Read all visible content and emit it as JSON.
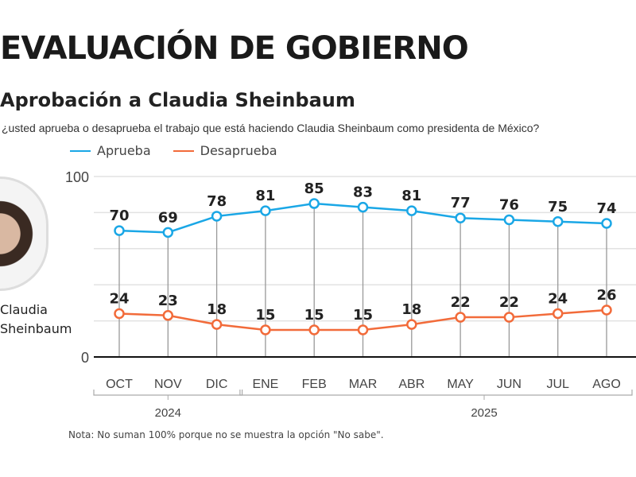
{
  "header": {
    "title": "EVALUACIÓN DE GOBIERNO",
    "subtitle": "Aprobación a Claudia Sheinbaum",
    "question": "¿usted aprueba o desaprueba el trabajo que está haciendo Claudia Sheinbaum como presidenta de México?"
  },
  "portrait": {
    "name_line1": "Claudia",
    "name_line2": "Sheinbaum"
  },
  "note": "Nota: No suman 100% porque no se muestra la opción \"No sabe\".",
  "chart_data": {
    "type": "line",
    "categories": [
      "OCT",
      "NOV",
      "DIC",
      "ENE",
      "FEB",
      "MAR",
      "ABR",
      "MAY",
      "JUN",
      "JUL",
      "AGO"
    ],
    "year_groups": [
      {
        "label": "2024",
        "from": 0,
        "to": 2
      },
      {
        "label": "2025",
        "from": 3,
        "to": 10
      }
    ],
    "y_ticks": [
      "0",
      "100"
    ],
    "ylim": [
      0,
      100
    ],
    "grid": true,
    "legend_position": "top-left",
    "series": [
      {
        "name": "Aprueba",
        "color": "#1aa7e6",
        "values": [
          70,
          69,
          78,
          81,
          85,
          83,
          81,
          77,
          76,
          75,
          74
        ]
      },
      {
        "name": "Desaprueba",
        "color": "#f26b3a",
        "values": [
          24,
          23,
          18,
          15,
          15,
          15,
          18,
          22,
          22,
          24,
          26
        ]
      }
    ]
  }
}
